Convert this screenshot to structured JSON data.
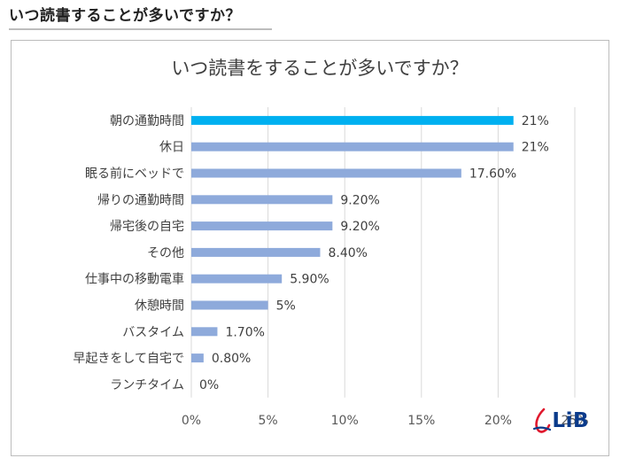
{
  "page": {
    "heading": "いつ読書することが多いですか？",
    "logo_text": "LiB"
  },
  "colors": {
    "highlight": "#00b0f0",
    "bar": "#8eaadb",
    "logo_red": "#e0192e",
    "logo_blue": "#0a3a8a"
  },
  "chart_data": {
    "type": "bar",
    "orientation": "horizontal",
    "title": "いつ読書をすることが多いですか？",
    "xlabel": "",
    "ylabel": "",
    "xlim": [
      0,
      25
    ],
    "xticks": [
      0,
      5,
      10,
      15,
      20,
      25
    ],
    "xtick_labels": [
      "0%",
      "5%",
      "10%",
      "15%",
      "20%",
      "25%"
    ],
    "grid": true,
    "categories": [
      "朝の通勤時間",
      "休日",
      "眠る前にベッドで",
      "帰りの通勤時間",
      "帰宅後の自宅",
      "その他",
      "仕事中の移動電車",
      "休憩時間",
      "バスタイム",
      "早起きをして自宅で",
      "ランチタイム"
    ],
    "values": [
      21,
      21,
      17.6,
      9.2,
      9.2,
      8.4,
      5.9,
      5,
      1.7,
      0.8,
      0
    ],
    "data_labels": [
      "21%",
      "21%",
      "17.60%",
      "9.20%",
      "9.20%",
      "8.40%",
      "5.90%",
      "5%",
      "1.70%",
      "0.80%",
      "0%"
    ],
    "highlight_index": 0
  }
}
